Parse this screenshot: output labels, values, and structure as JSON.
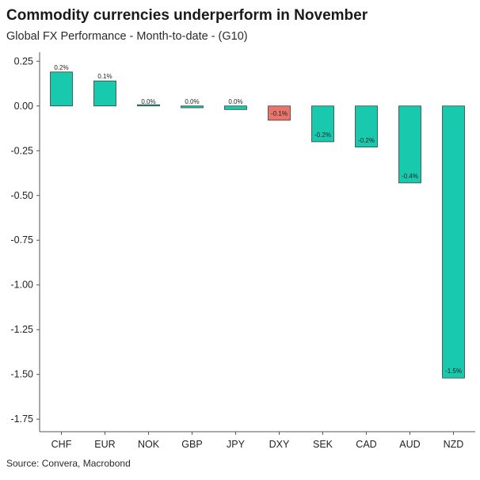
{
  "header": {
    "title": "Commodity currencies underperform in November",
    "subtitle": "Global FX Performance - Month-to-date - (G10)"
  },
  "footer": {
    "source": "Source: Convera, Macrobond"
  },
  "colors": {
    "positive": "#19C9AE",
    "highlight": "#E9746B",
    "bar_outline": "#2a2a2a",
    "axis": "#555555"
  },
  "chart_data": {
    "type": "bar",
    "categories": [
      "CHF",
      "EUR",
      "NOK",
      "GBP",
      "JPY",
      "DXY",
      "SEK",
      "CAD",
      "AUD",
      "NZD"
    ],
    "values": [
      0.19,
      0.14,
      0.0,
      -0.01,
      -0.02,
      -0.08,
      -0.2,
      -0.23,
      -0.43,
      -1.52
    ],
    "data_labels": [
      "0.2%",
      "0.1%",
      "0.0%",
      "0.0%",
      "0.0%",
      "-0.1%",
      "-0.2%",
      "-0.2%",
      "-0.4%",
      "-1.5%"
    ],
    "highlight_category": "DXY",
    "y_ticks": [
      0.25,
      0.0,
      -0.25,
      -0.5,
      -0.75,
      -1.0,
      -1.25,
      -1.5,
      -1.75
    ],
    "y_tick_labels": [
      "0.25",
      "0.00",
      "-0.25",
      "-0.50",
      "-0.75",
      "-1.00",
      "-1.25",
      "-1.50",
      "-1.75"
    ],
    "ylim": [
      -1.82,
      0.3
    ],
    "grid": false,
    "legend": "none"
  }
}
